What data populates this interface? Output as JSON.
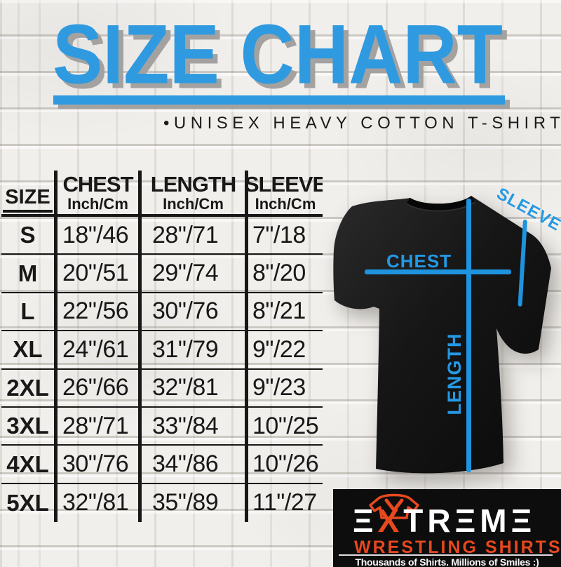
{
  "title": "SIZE CHART",
  "subtitle": "•UNISEX HEAVY COTTON T-SHIRT",
  "colors": {
    "accent_blue": "#2F9AE0",
    "measure_blue": "#1E93DE",
    "table_ink": "#181818",
    "logo_orange": "#E8481E",
    "shirt_black": "#141414",
    "wall_white": "#F1EFEC"
  },
  "size_table": {
    "columns": [
      {
        "label": "SIZE",
        "sub": ""
      },
      {
        "label": "CHEST",
        "sub": "Inch/Cm"
      },
      {
        "label": "LENGTH",
        "sub": "Inch/Cm"
      },
      {
        "label": "SLEEVE",
        "sub": "Inch/Cm"
      }
    ],
    "rows": [
      {
        "size": "S",
        "chest": "18\"/46",
        "length": "28\"/71",
        "sleeve": "7\"/18"
      },
      {
        "size": "M",
        "chest": "20\"/51",
        "length": "29\"/74",
        "sleeve": "8\"/20"
      },
      {
        "size": "L",
        "chest": "22\"/56",
        "length": "30\"/76",
        "sleeve": "8\"/21"
      },
      {
        "size": "XL",
        "chest": "24\"/61",
        "length": "31\"/79",
        "sleeve": "9\"/22"
      },
      {
        "size": "2XL",
        "chest": "26\"/66",
        "length": "32\"/81",
        "sleeve": "9\"/23"
      },
      {
        "size": "3XL",
        "chest": "28\"/71",
        "length": "33\"/84",
        "sleeve": "10\"/25"
      },
      {
        "size": "4XL",
        "chest": "30\"/76",
        "length": "34\"/86",
        "sleeve": "10\"/26"
      },
      {
        "size": "5XL",
        "chest": "32\"/81",
        "length": "35\"/89",
        "sleeve": "11\"/27"
      }
    ]
  },
  "shirt_diagram": {
    "chest_label": "CHEST",
    "length_label": "LENGTH",
    "sleeve_label": "SLEEVE"
  },
  "logo": {
    "brand": "EXTREME",
    "brand_line2": "WRESTLING SHIRTS",
    "tagline": "Thousands of Shirts. Millions of Smiles :)"
  },
  "chart_data": {
    "type": "table",
    "title": "SIZE CHART",
    "columns": [
      "SIZE",
      "CHEST Inch/Cm",
      "LENGTH Inch/Cm",
      "SLEEVE Inch/Cm"
    ],
    "rows": [
      [
        "S",
        "18\"/46",
        "28\"/71",
        "7\"/18"
      ],
      [
        "M",
        "20\"/51",
        "29\"/74",
        "8\"/20"
      ],
      [
        "L",
        "22\"/56",
        "30\"/76",
        "8\"/21"
      ],
      [
        "XL",
        "24\"/61",
        "31\"/79",
        "9\"/22"
      ],
      [
        "2XL",
        "26\"/66",
        "32\"/81",
        "9\"/23"
      ],
      [
        "3XL",
        "28\"/71",
        "33\"/84",
        "10\"/25"
      ],
      [
        "4XL",
        "30\"/76",
        "34\"/86",
        "10\"/26"
      ],
      [
        "5XL",
        "32\"/81",
        "35\"/89",
        "11\"/27"
      ]
    ]
  }
}
